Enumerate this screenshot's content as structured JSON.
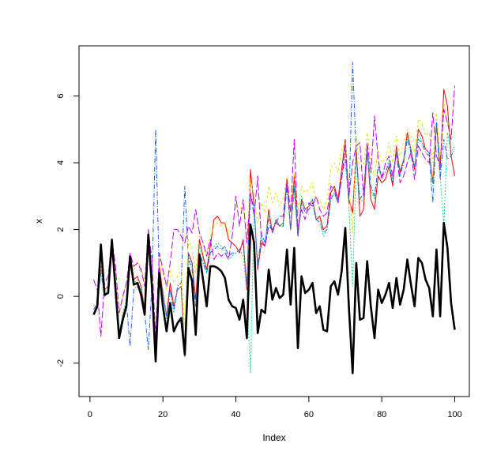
{
  "chart_data": {
    "type": "line",
    "title": "",
    "xlabel": "Index",
    "ylabel": "x",
    "xlim": [
      -3,
      104
    ],
    "ylim": [
      -3,
      7.5
    ],
    "xticks": [
      0,
      20,
      40,
      60,
      80,
      100
    ],
    "yticks": [
      -2,
      0,
      2,
      4,
      6
    ],
    "x": [
      1,
      2,
      3,
      4,
      5,
      6,
      7,
      8,
      9,
      10,
      11,
      12,
      13,
      14,
      15,
      16,
      17,
      18,
      19,
      20,
      21,
      22,
      23,
      24,
      25,
      26,
      27,
      28,
      29,
      30,
      31,
      32,
      33,
      34,
      35,
      36,
      37,
      38,
      39,
      40,
      41,
      42,
      43,
      44,
      45,
      46,
      47,
      48,
      49,
      50,
      51,
      52,
      53,
      54,
      55,
      56,
      57,
      58,
      59,
      60,
      61,
      62,
      63,
      64,
      65,
      66,
      67,
      68,
      69,
      70,
      71,
      72,
      73,
      74,
      75,
      76,
      77,
      78,
      79,
      80,
      81,
      82,
      83,
      84,
      85,
      86,
      87,
      88,
      89,
      90,
      91,
      92,
      93,
      94,
      95,
      96,
      97,
      98,
      99,
      100
    ],
    "series": [
      {
        "color": "#000000",
        "width": 2.6,
        "dash": "",
        "values": [
          -0.55,
          -0.3,
          1.55,
          0.05,
          0.1,
          1.7,
          0.2,
          -1.25,
          -0.7,
          -0.3,
          1.2,
          0.35,
          0.4,
          0.05,
          -0.55,
          1.85,
          0.3,
          -1.95,
          0.7,
          -0.3,
          -1.05,
          -0.2,
          -1.05,
          -0.8,
          -0.65,
          -1.75,
          0.85,
          0.45,
          -1.15,
          1.25,
          0.5,
          -0.3,
          0.9,
          0.9,
          0.85,
          0.75,
          0.55,
          -0.1,
          -0.3,
          -0.35,
          -0.7,
          -0.1,
          -1.25,
          2.15,
          1.6,
          -1.1,
          -0.4,
          -0.5,
          0.8,
          -0.1,
          0.25,
          -0.05,
          0.05,
          1.4,
          -0.25,
          1.45,
          -1.55,
          0.6,
          0.1,
          0.2,
          0.4,
          -0.5,
          -0.3,
          -1.0,
          -1.05,
          0.3,
          0.45,
          0.05,
          0.75,
          2.05,
          -0.35,
          -2.3,
          1.0,
          -0.7,
          -0.65,
          1.05,
          -0.3,
          -1.25,
          0.2,
          -0.2,
          0.05,
          0.4,
          -0.35,
          0.55,
          -0.25,
          0.2,
          1.1,
          0.35,
          -0.3,
          1.15,
          1.0,
          0.5,
          0.25,
          -0.6,
          1.4,
          -0.6,
          2.2,
          1.45,
          -0.2,
          -1.0
        ]
      },
      {
        "color": "#ff0000",
        "width": 1,
        "dash": "",
        "values": [
          -0.5,
          -0.3,
          0.9,
          0.2,
          0.3,
          1.3,
          0.4,
          -1.2,
          -0.6,
          -0.2,
          1.1,
          0.5,
          0.6,
          0.3,
          -0.4,
          1.9,
          0.5,
          -1.8,
          0.9,
          0.1,
          -0.6,
          0.4,
          -0.3,
          0.2,
          0.3,
          -1.8,
          1.3,
          1.0,
          -0.1,
          1.7,
          1.2,
          0.8,
          1.5,
          2.3,
          2.4,
          2.2,
          2.2,
          1.7,
          1.6,
          1.5,
          1.3,
          1.7,
          0.2,
          3.8,
          2.7,
          0.8,
          1.6,
          1.5,
          2.6,
          1.9,
          2.3,
          2.1,
          2.2,
          3.5,
          2.0,
          3.6,
          1.8,
          2.9,
          2.6,
          2.7,
          2.9,
          2.3,
          2.4,
          2.0,
          2.1,
          3.1,
          3.3,
          2.9,
          3.8,
          4.7,
          2.9,
          2.5,
          4.4,
          2.4,
          2.6,
          4.4,
          2.9,
          2.6,
          3.6,
          3.4,
          3.5,
          3.9,
          3.3,
          4.5,
          3.7,
          4.1,
          4.9,
          4.4,
          3.8,
          5.0,
          4.8,
          4.4,
          4.3,
          3.4,
          5.2,
          3.8,
          6.2,
          5.7,
          4.2,
          3.6
        ]
      },
      {
        "color": "#00e676",
        "width": 1,
        "dash": "2,2",
        "values": [
          -0.4,
          -0.2,
          0.8,
          0.1,
          0.2,
          1.6,
          0.4,
          -1.1,
          -0.5,
          -0.1,
          1.0,
          0.4,
          0.5,
          0.2,
          -0.5,
          1.7,
          0.5,
          -1.9,
          0.6,
          0.2,
          -0.7,
          0.2,
          -0.5,
          0.2,
          0.3,
          -1.5,
          1.2,
          0.9,
          -0.3,
          1.5,
          1.1,
          0.7,
          1.3,
          1.5,
          1.6,
          1.5,
          1.4,
          1.1,
          1.2,
          1.3,
          1.4,
          1.2,
          0.1,
          -2.3,
          2.8,
          0.9,
          1.8,
          1.6,
          2.4,
          1.9,
          2.3,
          2.1,
          2.2,
          3.3,
          2.1,
          3.1,
          1.9,
          3.0,
          2.6,
          2.7,
          2.9,
          2.4,
          2.3,
          1.8,
          2.0,
          2.9,
          3.1,
          2.8,
          3.6,
          4.4,
          2.7,
          0.3,
          4.1,
          2.8,
          2.9,
          4.2,
          3.2,
          2.9,
          3.8,
          3.6,
          3.7,
          4.1,
          3.5,
          4.4,
          3.8,
          4.1,
          4.8,
          4.4,
          3.9,
          4.9,
          4.6,
          4.4,
          4.3,
          3.3,
          5.2,
          3.6,
          2.1,
          4.9,
          4.3,
          4.5
        ]
      },
      {
        "color": "#1f5fff",
        "width": 1,
        "dash": "6,2,1,2",
        "values": [
          -0.4,
          -0.2,
          0.7,
          0.0,
          0.1,
          1.4,
          0.3,
          -1.1,
          -0.6,
          -0.2,
          -1.5,
          0.2,
          0.3,
          0.1,
          -0.5,
          -1.6,
          0.4,
          5.0,
          0.6,
          0.1,
          -0.6,
          0.2,
          -0.4,
          0.3,
          0.4,
          3.3,
          1.1,
          0.8,
          -0.3,
          1.3,
          1.0,
          0.7,
          1.3,
          1.4,
          1.5,
          1.4,
          1.5,
          1.2,
          1.3,
          1.3,
          1.4,
          1.6,
          0.3,
          3.1,
          2.6,
          0.9,
          1.9,
          1.6,
          2.3,
          1.9,
          2.2,
          2.1,
          2.1,
          3.3,
          2.0,
          3.3,
          1.8,
          2.8,
          2.5,
          2.6,
          2.8,
          2.3,
          2.2,
          1.9,
          2.0,
          2.9,
          3.1,
          2.8,
          3.6,
          4.1,
          2.8,
          7.0,
          4.2,
          2.9,
          3.1,
          4.4,
          3.3,
          3.0,
          3.9,
          3.6,
          3.7,
          4.0,
          3.4,
          4.3,
          3.6,
          4.0,
          4.7,
          4.3,
          3.9,
          4.7,
          4.6,
          4.3,
          4.2,
          2.8,
          5.2,
          3.5,
          4.7,
          4.1,
          4.2,
          4.4
        ]
      },
      {
        "color": "#e0e000",
        "width": 1,
        "dash": "3,3",
        "values": [
          -0.3,
          -0.1,
          0.9,
          0.4,
          0.6,
          1.5,
          0.8,
          -0.6,
          -0.1,
          0.4,
          1.2,
          0.8,
          1.0,
          0.9,
          0.4,
          2.0,
          1.1,
          -1.5,
          1.2,
          0.7,
          0.2,
          0.8,
          0.4,
          0.6,
          0.8,
          -0.9,
          1.7,
          1.4,
          0.7,
          1.9,
          1.6,
          1.3,
          1.8,
          2.1,
          2.2,
          2.1,
          2.2,
          1.9,
          2.0,
          2.7,
          2.6,
          2.7,
          1.6,
          3.5,
          3.0,
          2.2,
          2.8,
          2.5,
          3.3,
          2.8,
          3.1,
          2.7,
          2.9,
          3.6,
          2.6,
          3.7,
          2.5,
          3.3,
          3.1,
          3.2,
          3.4,
          2.8,
          2.9,
          2.6,
          2.9,
          3.8,
          4.0,
          3.7,
          4.4,
          4.6,
          3.2,
          1.9,
          4.8,
          3.8,
          3.9,
          4.9,
          4.0,
          3.6,
          4.4,
          4.0,
          4.1,
          4.6,
          4.0,
          4.8,
          4.2,
          4.6,
          5.0,
          4.8,
          4.3,
          5.3,
          5.2,
          4.8,
          4.9,
          4.0,
          5.5,
          4.1,
          5.8,
          5.2,
          4.7,
          4.9
        ]
      },
      {
        "color": "#c000ff",
        "width": 1,
        "dash": "9,3",
        "values": [
          0.5,
          0.2,
          -1.2,
          0.4,
          0.6,
          1.7,
          0.9,
          -0.5,
          0.0,
          0.4,
          1.3,
          0.9,
          1.0,
          0.8,
          0.3,
          2.0,
          1.1,
          -1.2,
          1.3,
          0.8,
          0.3,
          1.0,
          2.0,
          2.0,
          1.8,
          1.6,
          2.1,
          1.9,
          2.6,
          1.9,
          1.6,
          1.2,
          1.7,
          1.1,
          1.3,
          1.2,
          1.3,
          1.1,
          1.8,
          3.0,
          2.1,
          2.9,
          1.6,
          3.1,
          2.4,
          3.6,
          1.7,
          1.5,
          2.1,
          2.0,
          2.2,
          2.4,
          2.4,
          3.5,
          2.5,
          4.7,
          2.0,
          2.6,
          2.3,
          2.8,
          2.7,
          3.0,
          2.6,
          2.4,
          2.5,
          3.3,
          3.2,
          2.8,
          3.5,
          4.5,
          3.0,
          4.0,
          4.5,
          4.6,
          3.0,
          4.6,
          3.7,
          5.4,
          4.1,
          3.5,
          4.0,
          4.2,
          3.6,
          4.3,
          3.4,
          3.6,
          4.0,
          4.3,
          3.5,
          4.5,
          4.3,
          4.1,
          4.0,
          5.5,
          4.2,
          3.9,
          5.6,
          5.2,
          4.7,
          6.3
        ]
      }
    ]
  }
}
